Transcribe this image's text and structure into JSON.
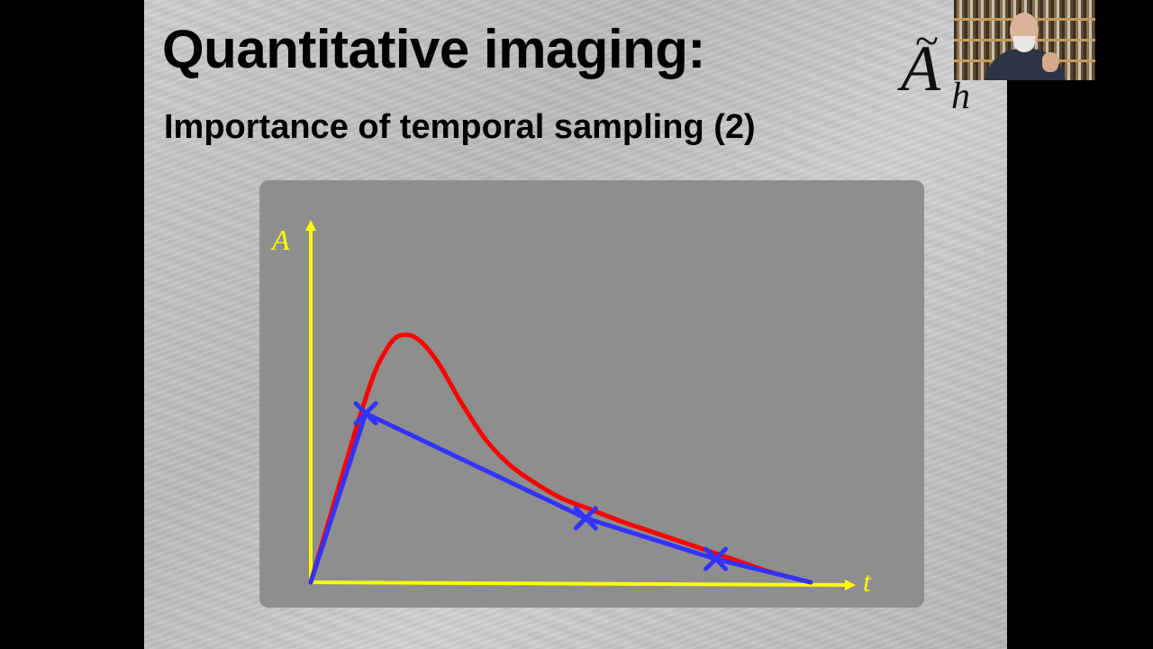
{
  "slide": {
    "title": "Quantitative imaging:",
    "subtitle": "Importance of temporal sampling (2)",
    "logo": {
      "letter": "A",
      "accent": "~",
      "subscript": "h"
    }
  },
  "chart_data": {
    "type": "line",
    "title": "",
    "xlabel": "t",
    "ylabel": "A",
    "xlim": [
      0,
      100
    ],
    "ylim": [
      0,
      100
    ],
    "grid": false,
    "axis_color": "#ffff00",
    "series": [
      {
        "color": "#ff0000",
        "style": "smooth",
        "x": [
          0,
          6,
          10,
          13,
          15.5,
          17,
          18.5,
          20.5,
          23,
          26,
          30,
          35,
          40,
          45,
          50,
          56,
          62,
          68,
          74,
          80,
          86,
          92,
          100
        ],
        "y": [
          0,
          35,
          58,
          73,
          81,
          84,
          85,
          84.5,
          81,
          74,
          62,
          49,
          40,
          34,
          29,
          25,
          21,
          17.5,
          14,
          10.5,
          7,
          3.5,
          0
        ]
      },
      {
        "color": "#3333ff",
        "style": "polyline",
        "markers": "x",
        "x": [
          0,
          11,
          55,
          81,
          100
        ],
        "y": [
          0,
          58,
          22,
          8,
          0
        ],
        "marked_points": [
          1,
          2,
          3
        ]
      }
    ]
  },
  "webcam": {
    "description_icon": "presenter-video-icon"
  }
}
